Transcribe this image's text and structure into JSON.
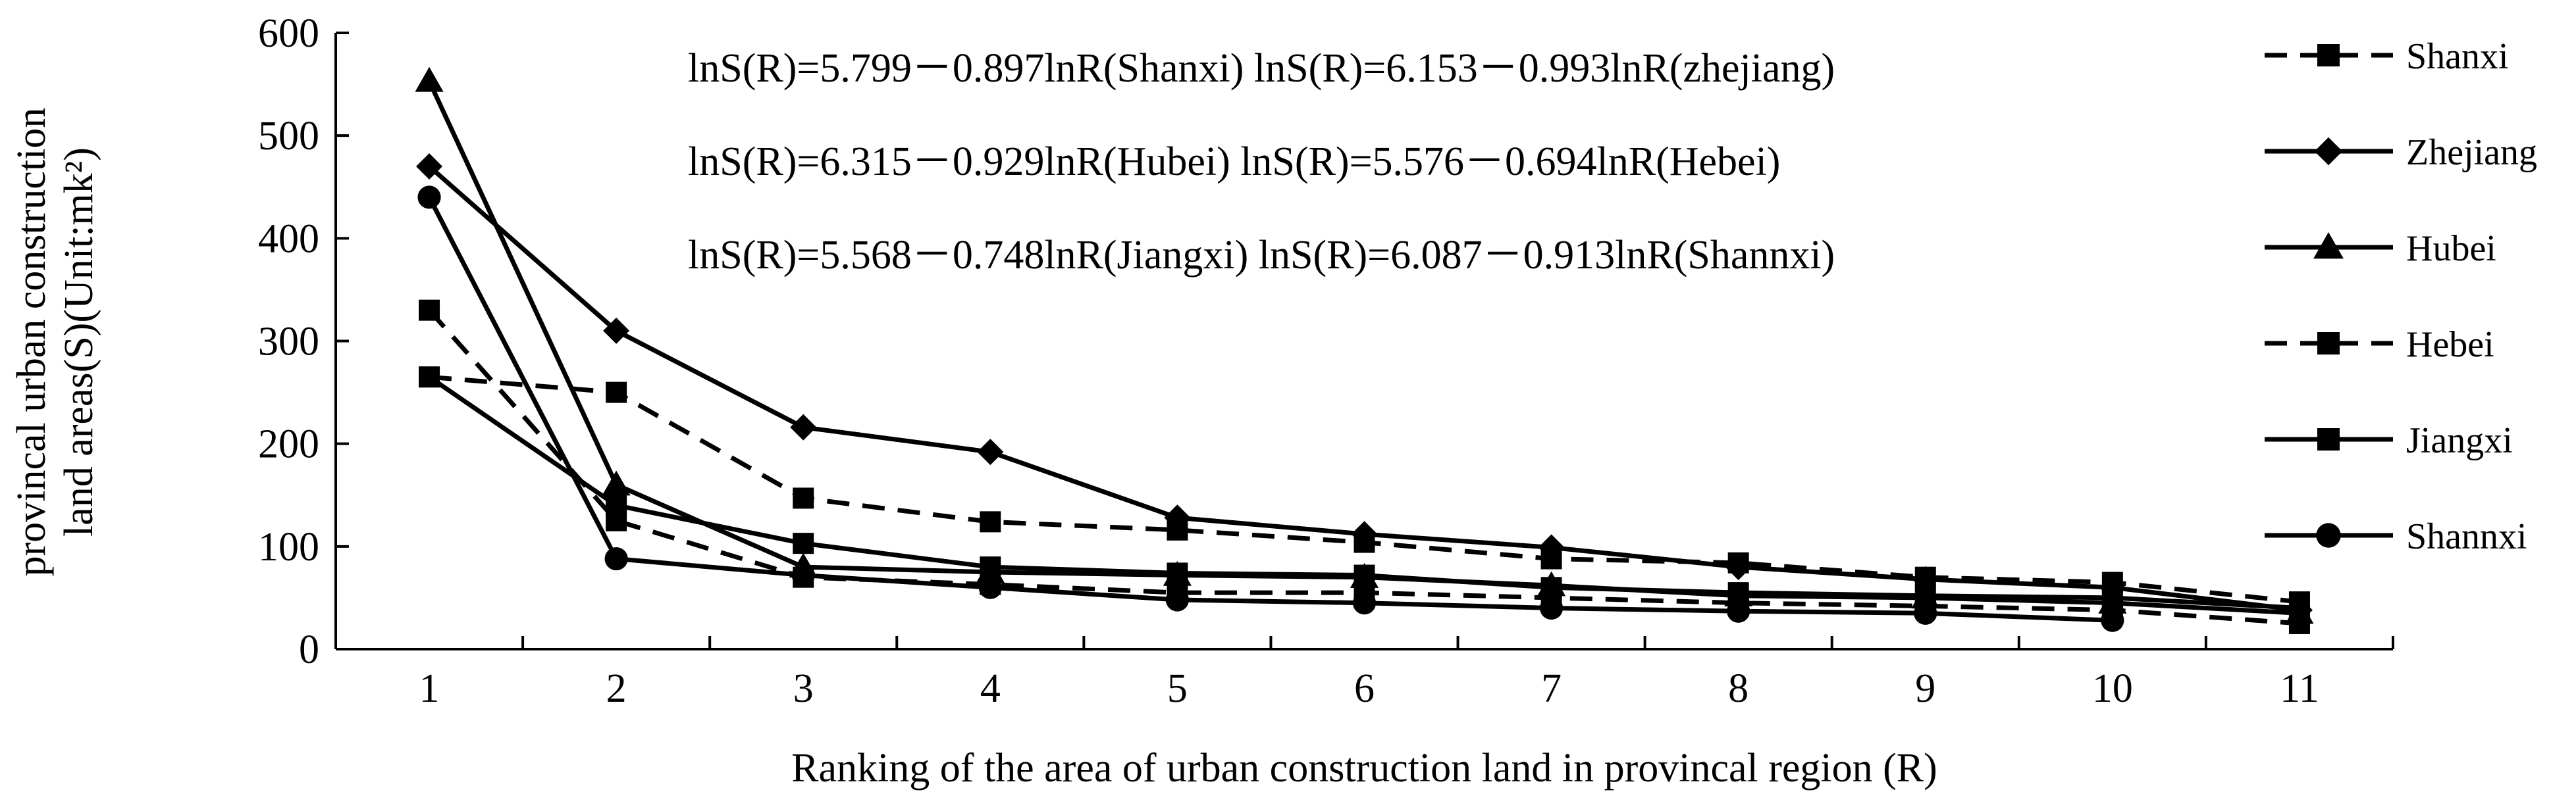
{
  "chart_data": {
    "type": "line",
    "title": "",
    "xlabel": "Ranking of the area of urban construction land in provincal region (R)",
    "ylabel_line1": "provincal urban construction",
    "ylabel_line2": "land areas(S)(Unit:mk²)",
    "x": [
      1,
      2,
      3,
      4,
      5,
      6,
      7,
      8,
      9,
      10,
      11
    ],
    "xlim": [
      0.5,
      11.5
    ],
    "ylim": [
      0,
      600
    ],
    "yticks": [
      0,
      100,
      200,
      300,
      400,
      500,
      600
    ],
    "grid": false,
    "legend_position": "right",
    "equations": [
      "lnS(R)=5.799－0.897lnR(Shanxi)  lnS(R)=6.153－0.993lnR(zhejiang)",
      "lnS(R)=6.315－0.929lnR(Hubei)  lnS(R)=5.576－0.694lnR(Hebei)",
      "lnS(R)=5.568－0.748lnR(Jiangxi)  lnS(R)=6.087－0.913lnR(Shannxi)"
    ],
    "series": [
      {
        "name": "Shanxi",
        "marker": "square",
        "dash": "dashed",
        "values": [
          330,
          125,
          70,
          63,
          55,
          55,
          50,
          45,
          42,
          38,
          25
        ]
      },
      {
        "name": "Zhejiang",
        "marker": "diamond",
        "dash": "solid",
        "values": [
          470,
          310,
          216,
          192,
          128,
          112,
          99,
          80,
          68,
          60,
          38
        ]
      },
      {
        "name": "Hubei",
        "marker": "triangle",
        "dash": "solid",
        "values": [
          553,
          160,
          80,
          75,
          72,
          70,
          62,
          52,
          50,
          45,
          35
        ]
      },
      {
        "name": "Hebei",
        "marker": "square",
        "dash": "dashed",
        "values": [
          265,
          250,
          147,
          124,
          116,
          104,
          88,
          84,
          70,
          65,
          46
        ]
      },
      {
        "name": "Jiangxi",
        "marker": "square",
        "dash": "solid",
        "values": [
          265,
          140,
          103,
          80,
          74,
          72,
          60,
          55,
          52,
          50,
          40
        ]
      },
      {
        "name": "Shannxi",
        "marker": "circle",
        "dash": "solid",
        "values": [
          440,
          88,
          72,
          60,
          48,
          45,
          40,
          37,
          35,
          28,
          null
        ]
      }
    ]
  }
}
